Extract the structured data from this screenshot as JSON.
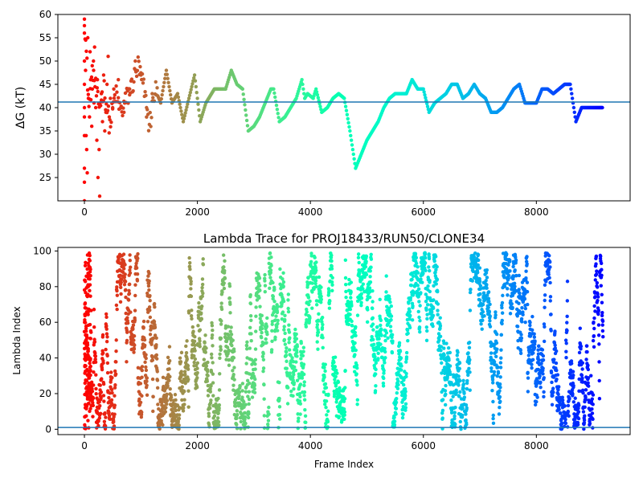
{
  "chart_data": [
    {
      "type": "scatter",
      "title": "",
      "xlabel": "",
      "ylabel": "ΔG (kT)",
      "xlim": [
        -470,
        9660
      ],
      "ylim": [
        20.0,
        60.0
      ],
      "xticks": [
        0,
        2000,
        4000,
        6000,
        8000
      ],
      "yticks": [
        25,
        30,
        35,
        40,
        45,
        50,
        55,
        60
      ],
      "hline": 41.2,
      "colormap": "rainbow (red → violet along frame index)",
      "grid": false,
      "trace": [
        [
          0,
          60
        ],
        [
          80,
          40
        ],
        [
          150,
          48
        ],
        [
          250,
          40
        ],
        [
          350,
          44
        ],
        [
          450,
          36
        ],
        [
          550,
          43
        ],
        [
          650,
          39
        ],
        [
          750,
          42
        ],
        [
          850,
          45
        ],
        [
          950,
          49
        ],
        [
          1050,
          44
        ],
        [
          1150,
          36
        ],
        [
          1250,
          44
        ],
        [
          1350,
          41
        ],
        [
          1450,
          48
        ],
        [
          1550,
          41
        ],
        [
          1650,
          43
        ],
        [
          1750,
          37
        ],
        [
          1850,
          42
        ],
        [
          1950,
          47
        ],
        [
          2050,
          37
        ],
        [
          2150,
          41
        ],
        [
          2300,
          44
        ],
        [
          2400,
          44
        ],
        [
          2500,
          44
        ],
        [
          2600,
          48
        ],
        [
          2700,
          45
        ],
        [
          2800,
          44
        ],
        [
          2900,
          35
        ],
        [
          3000,
          36
        ],
        [
          3100,
          38
        ],
        [
          3200,
          41
        ],
        [
          3300,
          44
        ],
        [
          3350,
          44
        ],
        [
          3450,
          37
        ],
        [
          3550,
          38
        ],
        [
          3650,
          40
        ],
        [
          3750,
          42
        ],
        [
          3850,
          46
        ],
        [
          3900,
          42
        ],
        [
          3950,
          43
        ],
        [
          4050,
          42
        ],
        [
          4100,
          44
        ],
        [
          4200,
          39
        ],
        [
          4300,
          40
        ],
        [
          4400,
          42
        ],
        [
          4500,
          43
        ],
        [
          4600,
          42
        ],
        [
          4700,
          35
        ],
        [
          4800,
          27
        ],
        [
          4900,
          30
        ],
        [
          5000,
          33
        ],
        [
          5100,
          35
        ],
        [
          5200,
          37
        ],
        [
          5300,
          40
        ],
        [
          5400,
          42
        ],
        [
          5500,
          43
        ],
        [
          5600,
          43
        ],
        [
          5700,
          43
        ],
        [
          5800,
          46
        ],
        [
          5900,
          44
        ],
        [
          6000,
          44
        ],
        [
          6100,
          39
        ],
        [
          6200,
          41
        ],
        [
          6300,
          42
        ],
        [
          6400,
          43
        ],
        [
          6500,
          45
        ],
        [
          6600,
          45
        ],
        [
          6700,
          42
        ],
        [
          6800,
          43
        ],
        [
          6900,
          45
        ],
        [
          7000,
          43
        ],
        [
          7100,
          42
        ],
        [
          7200,
          39
        ],
        [
          7300,
          39
        ],
        [
          7400,
          40
        ],
        [
          7500,
          42
        ],
        [
          7600,
          44
        ],
        [
          7700,
          45
        ],
        [
          7800,
          41
        ],
        [
          7900,
          41
        ],
        [
          8000,
          41
        ],
        [
          8100,
          44
        ],
        [
          8200,
          44
        ],
        [
          8300,
          43
        ],
        [
          8400,
          44
        ],
        [
          8500,
          45
        ],
        [
          8600,
          45
        ],
        [
          8700,
          37
        ],
        [
          8800,
          40
        ],
        [
          8900,
          40
        ],
        [
          9000,
          40
        ],
        [
          9100,
          40
        ],
        [
          9180,
          40
        ]
      ],
      "early_scatter": [
        [
          0,
          59
        ],
        [
          0,
          56
        ],
        [
          0,
          50
        ],
        [
          0,
          45
        ],
        [
          0,
          40
        ],
        [
          0,
          38
        ],
        [
          0,
          34
        ],
        [
          0,
          27
        ],
        [
          0,
          24
        ],
        [
          0,
          20
        ],
        [
          20,
          48
        ],
        [
          30,
          34
        ],
        [
          40,
          31
        ],
        [
          50,
          26
        ],
        [
          60,
          55
        ],
        [
          70,
          42
        ],
        [
          90,
          38
        ],
        [
          100,
          52
        ],
        [
          110,
          46
        ],
        [
          130,
          36
        ],
        [
          140,
          44
        ],
        [
          160,
          50
        ],
        [
          170,
          41
        ],
        [
          180,
          53
        ],
        [
          200,
          40
        ],
        [
          220,
          33
        ],
        [
          230,
          46
        ],
        [
          240,
          25
        ],
        [
          260,
          31
        ],
        [
          270,
          21
        ],
        [
          300,
          43
        ],
        [
          320,
          37
        ],
        [
          340,
          47
        ],
        [
          360,
          35
        ],
        [
          380,
          39
        ],
        [
          400,
          45
        ],
        [
          420,
          51
        ],
        [
          440,
          38
        ],
        [
          460,
          42
        ],
        [
          500,
          40
        ],
        [
          520,
          44
        ],
        [
          600,
          46
        ],
        [
          700,
          39
        ],
        [
          800,
          44
        ],
        [
          900,
          50
        ],
        [
          1000,
          47
        ],
        [
          1100,
          40
        ],
        [
          1200,
          43
        ]
      ]
    },
    {
      "type": "scatter",
      "title": "Lambda Trace for PROJ18433/RUN50/CLONE34",
      "xlabel": "Frame Index",
      "ylabel": "Lambda Index",
      "xlim": [
        -470,
        9660
      ],
      "ylim": [
        -3,
        102
      ],
      "xticks": [
        0,
        2000,
        4000,
        6000,
        8000
      ],
      "yticks": [
        0,
        20,
        40,
        60,
        80,
        100
      ],
      "hline": 1,
      "colormap": "rainbow (red → violet along frame index)",
      "grid": false,
      "x_range": [
        0,
        9180
      ],
      "y_range": [
        0,
        99
      ]
    }
  ]
}
